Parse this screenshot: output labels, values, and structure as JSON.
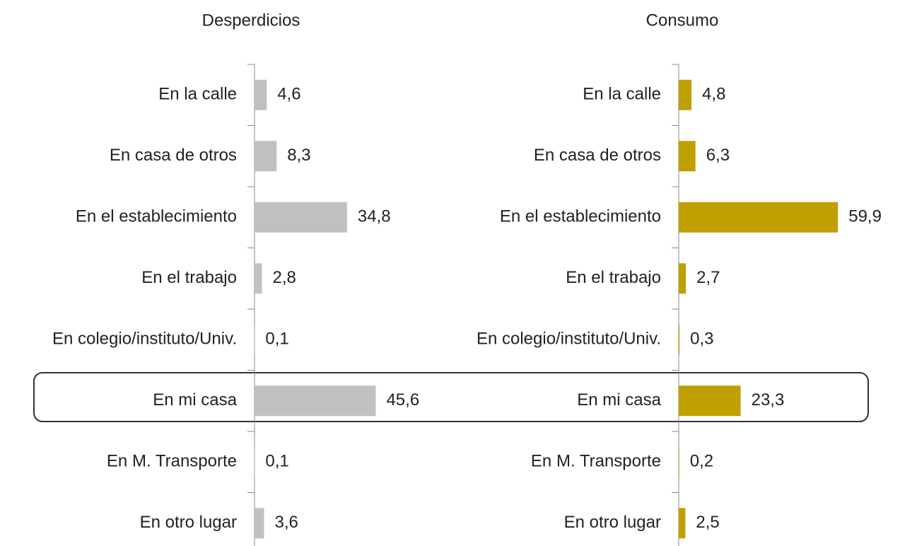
{
  "chart_data": [
    {
      "type": "bar",
      "orientation": "horizontal",
      "title": "Desperdicios",
      "color": "#c0c0c0",
      "categories": [
        "En la calle",
        "En casa de otros",
        "En el establecimiento",
        "En el trabajo",
        "En colegio/instituto/Univ.",
        "En mi casa",
        "En M. Transporte",
        "En otro lugar"
      ],
      "values": [
        4.6,
        8.3,
        34.8,
        2.8,
        0.1,
        45.6,
        0.1,
        3.6
      ],
      "value_labels": [
        "4,6",
        "8,3",
        "34,8",
        "2,8",
        "0,1",
        "45,6",
        "0,1",
        "3,6"
      ]
    },
    {
      "type": "bar",
      "orientation": "horizontal",
      "title": "Consumo",
      "color": "#bfa000",
      "categories": [
        "En la calle",
        "En casa de otros",
        "En el establecimiento",
        "En el trabajo",
        "En colegio/instituto/Univ.",
        "En mi casa",
        "En M. Transporte",
        "En otro lugar"
      ],
      "values": [
        4.8,
        6.3,
        59.9,
        2.7,
        0.3,
        23.3,
        0.2,
        2.5
      ],
      "value_labels": [
        "4,8",
        "6,3",
        "59,9",
        "2,7",
        "0,3",
        "23,3",
        "0,2",
        "2,5"
      ]
    }
  ]
}
